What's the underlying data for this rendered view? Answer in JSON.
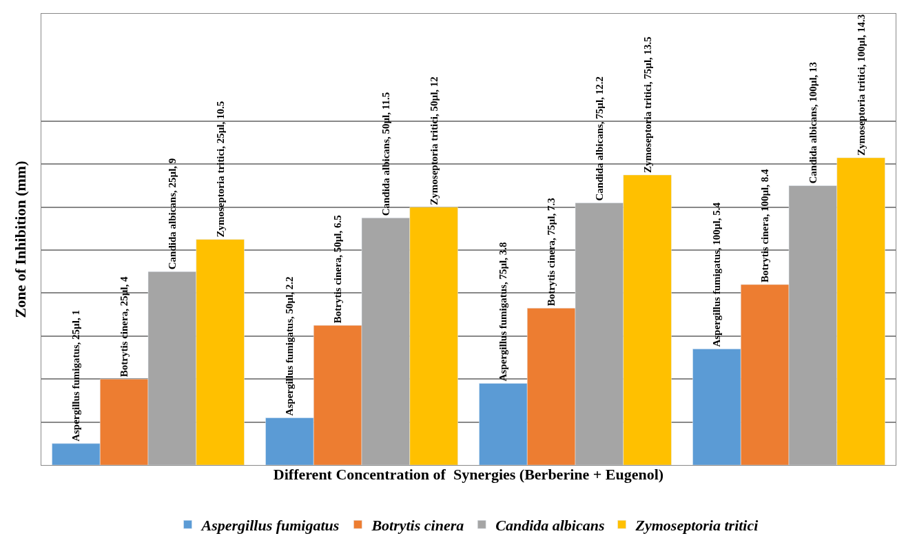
{
  "chart_data": {
    "type": "bar",
    "xlabel": "Different Concentration of  Synergies (Berberine + Eugenol)",
    "ylabel": "Zone of Inhibition (mm)",
    "categories": [
      null,
      null,
      null,
      null
    ],
    "series": [
      {
        "name": "Aspergillus fumigatus",
        "color": "#5b9bd5",
        "values": [
          1,
          2.2,
          3.8,
          5.4
        ],
        "value_labels": [
          "Aspergillus fumigatus, 25µl, 1",
          "Aspergillus fumigatus, 50µl, 2.2",
          "Aspergillus fumigatus, 75µl, 3.8",
          "Aspergillus fumigatus, 100µl, 5.4"
        ]
      },
      {
        "name": "Botrytis cinera",
        "color": "#ed7d31",
        "values": [
          4,
          6.5,
          7.3,
          8.4
        ],
        "value_labels": [
          "Botrytis cinera, 25µl, 4",
          "Botrytis cinera, 50µl, 6.5",
          "Botrytis cinera, 75µl, 7.3",
          "Botrytis cinera, 100µl, 8.4"
        ]
      },
      {
        "name": "Candida albicans",
        "color": "#a5a5a5",
        "values": [
          9,
          11.5,
          12.2,
          13
        ],
        "value_labels": [
          "Candida albicans, 25µl, 9",
          "Candida albicans, 50µl, 11.5",
          "Candida albicans, 75µl, 12.2",
          "Candida albicans, 100µl, 13"
        ]
      },
      {
        "name": "Zymoseptoria tritici",
        "color": "#ffc000",
        "values": [
          10.5,
          12,
          13.5,
          14.3
        ],
        "value_labels": [
          "Zymoseptoria tritici, 25µl, 10.5",
          "Zymoseptoria tritici, 50µl, 12",
          "Zymoseptoria tritici, 75µl, 13.5",
          "Zymoseptoria tritici, 100µl, 14.3"
        ]
      }
    ],
    "ylim": [
      0,
      21
    ],
    "yticks": [
      {
        "value": 0,
        "label": null
      },
      {
        "value": 2,
        "label": null
      },
      {
        "value": 4,
        "label": null
      },
      {
        "value": 6,
        "label": null
      },
      {
        "value": 8,
        "label": null
      },
      {
        "value": 10,
        "label": null
      },
      {
        "value": 12,
        "label": null
      },
      {
        "value": 14,
        "label": null
      },
      {
        "value": 16,
        "label": null
      }
    ],
    "grid": "y",
    "legend": "bottom",
    "tick_labels": false
  }
}
